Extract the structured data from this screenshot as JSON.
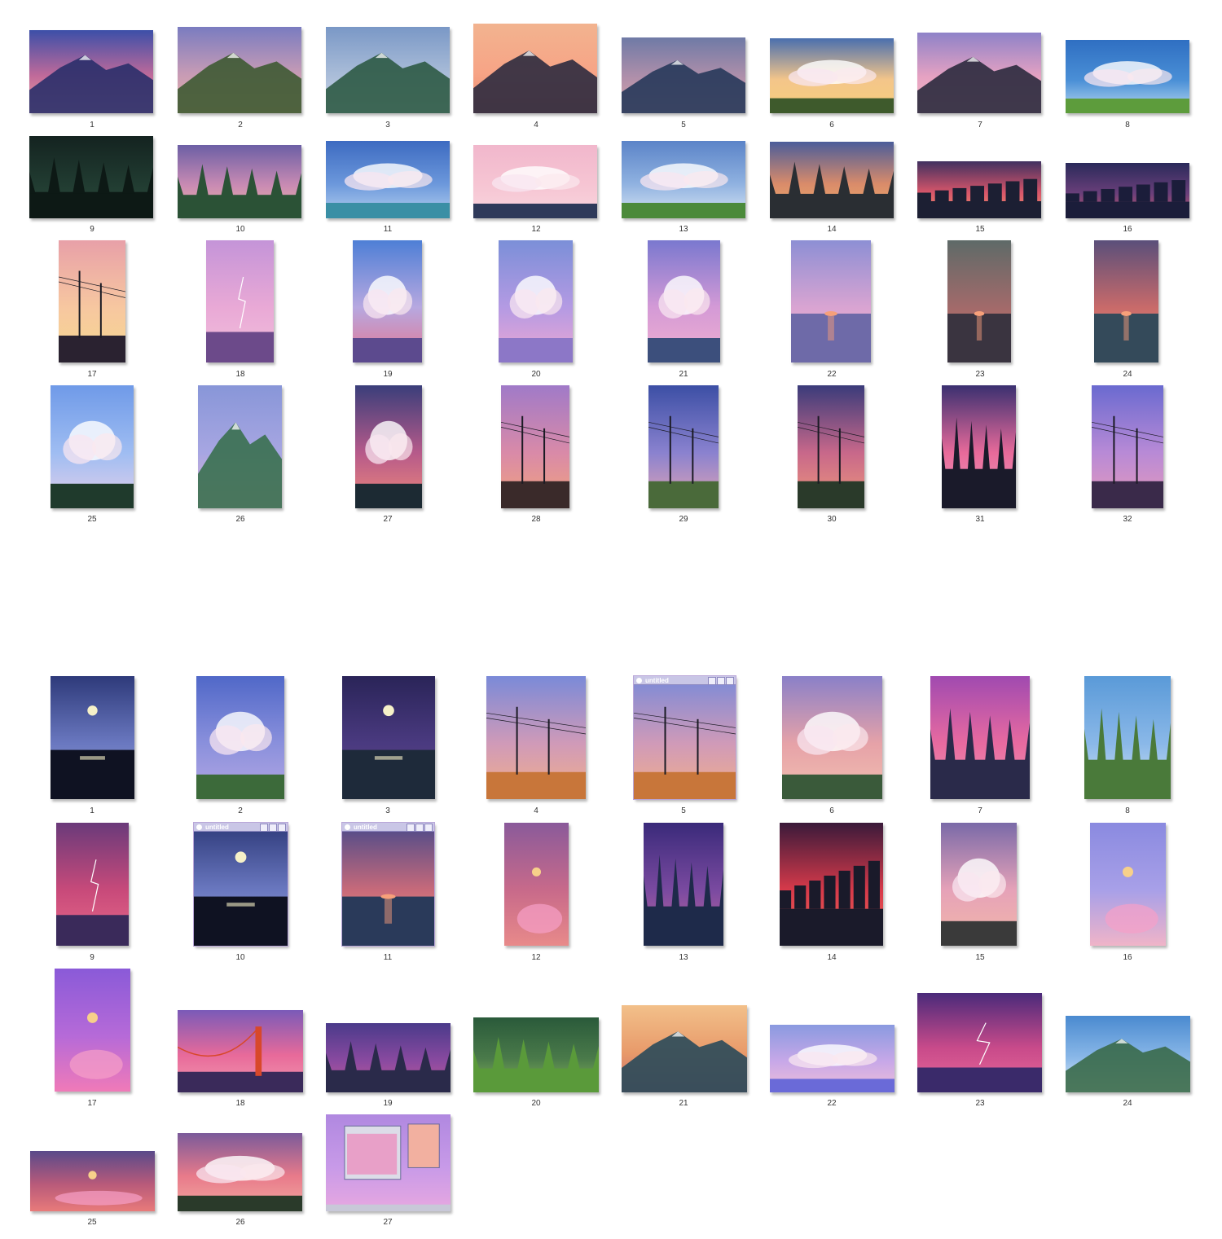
{
  "gallery_top": {
    "items": [
      {
        "label": "1",
        "sky": [
          "#3c4fa8",
          "#c06a9a",
          "#f0a6a0"
        ],
        "ground": "#2a2f6a",
        "motif": "mountain"
      },
      {
        "label": "2",
        "sky": [
          "#7a7cc0",
          "#c79bb5",
          "#e8b3a5"
        ],
        "ground": "#3e5a33",
        "motif": "mountain"
      },
      {
        "label": "3",
        "sky": [
          "#7a98c6",
          "#a9bcd8",
          "#cdd6e6"
        ],
        "ground": "#2e5a45",
        "motif": "mountain"
      },
      {
        "label": "4",
        "sky": [
          "#f2b38f",
          "#f7a486",
          "#e9896e"
        ],
        "ground": "#2d2b3f",
        "motif": "mountain"
      },
      {
        "label": "5",
        "sky": [
          "#6f7aa6",
          "#b290aa",
          "#d8a9a8"
        ],
        "ground": "#27385a",
        "motif": "mountain"
      },
      {
        "label": "6",
        "sky": [
          "#4a6fae",
          "#f3c58a",
          "#f7d07c"
        ],
        "ground": "#3e5a2c",
        "motif": "clouds"
      },
      {
        "label": "7",
        "sky": [
          "#8e82c8",
          "#e6a2c2",
          "#f3b8c0"
        ],
        "ground": "#2b2a3e",
        "motif": "mountain"
      },
      {
        "label": "8",
        "sky": [
          "#2f6fc2",
          "#4a8fd6",
          "#bcdcf2"
        ],
        "ground": "#5d9c3c",
        "motif": "clouds"
      },
      {
        "label": "9",
        "sky": [
          "#142320",
          "#203a30",
          "#2c4d3d"
        ],
        "ground": "#0d1915",
        "motif": "forest"
      },
      {
        "label": "10",
        "sky": [
          "#6c5fa5",
          "#c98bb3",
          "#f2b7a6"
        ],
        "ground": "#2b5236",
        "motif": "forest"
      },
      {
        "label": "11",
        "sky": [
          "#3d6bc1",
          "#6b97db",
          "#b6d2f0"
        ],
        "ground": "#3a8fa5",
        "motif": "clouds"
      },
      {
        "label": "12",
        "sky": [
          "#f1b7cc",
          "#f6c5d3",
          "#f9d6de"
        ],
        "ground": "#2f3a5a",
        "motif": "clouds"
      },
      {
        "label": "13",
        "sky": [
          "#5b84c8",
          "#8fb1e0",
          "#d8e6f4"
        ],
        "ground": "#4b8a3a",
        "motif": "clouds"
      },
      {
        "label": "14",
        "sky": [
          "#4b5d9a",
          "#d98b6a",
          "#f2b26a"
        ],
        "ground": "#2a2e33",
        "motif": "forest"
      },
      {
        "label": "15",
        "sky": [
          "#40305f",
          "#d8566a",
          "#f29a6a"
        ],
        "ground": "#1c1f33",
        "motif": "city"
      },
      {
        "label": "16",
        "sky": [
          "#2a2a5a",
          "#6a3f7a",
          "#c85a6a"
        ],
        "ground": "#1b1d3a",
        "motif": "city"
      },
      {
        "label": "17",
        "sky": [
          "#e8a0a8",
          "#f7c7a0",
          "#f6d98f"
        ],
        "ground": "#2a2230",
        "motif": "poles"
      },
      {
        "label": "18",
        "sky": [
          "#c494d8",
          "#e9a9d6",
          "#f2c0dc"
        ],
        "ground": "#6c4a8a",
        "motif": "storm"
      },
      {
        "label": "19",
        "sky": [
          "#4e7fd6",
          "#b7a8e0",
          "#e5748f"
        ],
        "ground": "#5c4a8e",
        "motif": "clouds"
      },
      {
        "label": "20",
        "sky": [
          "#7b8fd8",
          "#b49ae3",
          "#f0a8d3"
        ],
        "ground": "#8c77c7",
        "motif": "clouds"
      },
      {
        "label": "21",
        "sky": [
          "#7a78cf",
          "#d49ad6",
          "#f1b0d0"
        ],
        "ground": "#3c4f7c",
        "motif": "clouds"
      },
      {
        "label": "22",
        "sky": [
          "#8d8fd4",
          "#d9a4d2",
          "#f3b8c2"
        ],
        "ground": "#6e6aa8",
        "motif": "sea"
      },
      {
        "label": "23",
        "sky": [
          "#5e6a68",
          "#a26a6a",
          "#d9766a"
        ],
        "ground": "#3a3440",
        "motif": "sea"
      },
      {
        "label": "24",
        "sky": [
          "#5a4f7a",
          "#c86a6a",
          "#f29a7a"
        ],
        "ground": "#344a5a",
        "motif": "sea"
      },
      {
        "label": "25",
        "sky": [
          "#6f9ae8",
          "#9fbdf2",
          "#e6d0ea"
        ],
        "ground": "#1f3a2c",
        "motif": "clouds"
      },
      {
        "label": "26",
        "sky": [
          "#8896d8",
          "#a7a6e2",
          "#e0b2d2"
        ],
        "ground": "#3a7050",
        "motif": "mountain"
      },
      {
        "label": "27",
        "sky": [
          "#3a3e7a",
          "#b65a8a",
          "#f08a7a"
        ],
        "ground": "#1c2a33",
        "motif": "clouds"
      },
      {
        "label": "28",
        "sky": [
          "#a07ac8",
          "#d98aa8",
          "#f2a47a"
        ],
        "ground": "#3a2a2a",
        "motif": "poles"
      },
      {
        "label": "29",
        "sky": [
          "#3c4fa5",
          "#8a82cf",
          "#e9a6b2"
        ],
        "ground": "#4a6a3a",
        "motif": "poles"
      },
      {
        "label": "30",
        "sky": [
          "#3a3b7a",
          "#c8688a",
          "#f09a7a"
        ],
        "ground": "#2a3a2a",
        "motif": "poles"
      },
      {
        "label": "31",
        "sky": [
          "#3a3070",
          "#e86a9a",
          "#f3a2c2"
        ],
        "ground": "#1a1a2a",
        "motif": "forest"
      },
      {
        "label": "32",
        "sky": [
          "#6a6ad0",
          "#b88ad6",
          "#e89aba"
        ],
        "ground": "#3a2a4a",
        "motif": "poles"
      }
    ]
  },
  "gallery_bottom": {
    "items": [
      {
        "label": "1",
        "sky": [
          "#2e3a7a",
          "#6a78c0",
          "#9aa6d8"
        ],
        "ground": "#0f1222",
        "motif": "night"
      },
      {
        "label": "2",
        "sky": [
          "#5068c8",
          "#8a90dc",
          "#b6a8e4"
        ],
        "ground": "#3c6a3a",
        "motif": "clouds"
      },
      {
        "label": "3",
        "sky": [
          "#2a2458",
          "#4a3a80",
          "#6a4a8a"
        ],
        "ground": "#1e2a3a",
        "motif": "night"
      },
      {
        "label": "4",
        "sky": [
          "#7a8ad8",
          "#d09ab8",
          "#f3b088"
        ],
        "ground": "#c8763a",
        "motif": "poles"
      },
      {
        "label": "5",
        "sky": [
          "#7a8ad8",
          "#d09ab8",
          "#f3b088"
        ],
        "ground": "#c8763a",
        "motif": "poles",
        "window_title": "untitled"
      },
      {
        "label": "6",
        "sky": [
          "#8a80c8",
          "#e6a2a8",
          "#f2c0b0"
        ],
        "ground": "#3a5a3a",
        "motif": "clouds"
      },
      {
        "label": "7",
        "sky": [
          "#a04ab0",
          "#e86aa0",
          "#f29ab0"
        ],
        "ground": "#2a2a4a",
        "motif": "forest"
      },
      {
        "label": "8",
        "sky": [
          "#5a9ad8",
          "#8ab8e8",
          "#d8e8f4"
        ],
        "ground": "#4a7a3a",
        "motif": "forest"
      },
      {
        "label": "9",
        "sky": [
          "#6a3a7a",
          "#c84a7a",
          "#e86a8a"
        ],
        "ground": "#3a2a5a",
        "motif": "storm"
      },
      {
        "label": "10",
        "sky": [
          "#2e3a7a",
          "#6a78c0",
          "#9aa6d8"
        ],
        "ground": "#0f1222",
        "motif": "night",
        "window_title": "untitled"
      },
      {
        "label": "11",
        "sky": [
          "#4a4a8a",
          "#c86a7a",
          "#f29a7a"
        ],
        "ground": "#2a3a5a",
        "motif": "sea",
        "window_title": "untitled"
      },
      {
        "label": "12",
        "sky": [
          "#8a5a9a",
          "#c86a8a",
          "#e88a8a"
        ],
        "ground": "#1e1e3a",
        "motif": "moon"
      },
      {
        "label": "13",
        "sky": [
          "#3a2a7a",
          "#7a4aa0",
          "#c86aa0"
        ],
        "ground": "#1e2a4a",
        "motif": "forest"
      },
      {
        "label": "14",
        "sky": [
          "#3a1a3a",
          "#d83a4a",
          "#f26a5a"
        ],
        "ground": "#1a1a2a",
        "motif": "city"
      },
      {
        "label": "15",
        "sky": [
          "#7a6aa8",
          "#e6a2b8",
          "#f2b8a8"
        ],
        "ground": "#3a3a3a",
        "motif": "clouds"
      },
      {
        "label": "16",
        "sky": [
          "#8a8ae0",
          "#a8a0e8",
          "#f0b4c8"
        ],
        "ground": "#8a8ad8",
        "motif": "moon"
      },
      {
        "label": "17",
        "sky": [
          "#8a5ad8",
          "#b66ad8",
          "#f07ab8"
        ],
        "ground": "#8a5ad8",
        "motif": "moon"
      },
      {
        "label": "18",
        "sky": [
          "#7a5ab8",
          "#e86a9a",
          "#f29ab0"
        ],
        "ground": "#3a2a5a",
        "motif": "bridge"
      },
      {
        "label": "19",
        "sky": [
          "#4a3a8a",
          "#8a4aa0",
          "#c85a9a"
        ],
        "ground": "#2a2a4a",
        "motif": "forest"
      },
      {
        "label": "20",
        "sky": [
          "#2a5a3a",
          "#4a7a4a",
          "#8ab85a"
        ],
        "ground": "#5a9a3a",
        "motif": "forest"
      },
      {
        "label": "21",
        "sky": [
          "#f2c08a",
          "#e89a6a",
          "#c86a6a"
        ],
        "ground": "#2a4a5a",
        "motif": "mountain"
      },
      {
        "label": "22",
        "sky": [
          "#8a9ae0",
          "#c8a8e8",
          "#f0c0d8"
        ],
        "ground": "#6a6ad8",
        "motif": "clouds"
      },
      {
        "label": "23",
        "sky": [
          "#4a2a7a",
          "#c84a8a",
          "#e86a9a"
        ],
        "ground": "#3a2a6a",
        "motif": "storm"
      },
      {
        "label": "24",
        "sky": [
          "#4a8ad0",
          "#8ab8e8",
          "#e8f0f8"
        ],
        "ground": "#3a6a4a",
        "motif": "mountain"
      },
      {
        "label": "25",
        "sky": [
          "#5a4a8a",
          "#b85a7a",
          "#e87a7a"
        ],
        "ground": "#2a2a4a",
        "motif": "moon"
      },
      {
        "label": "26",
        "sky": [
          "#7a5a9a",
          "#e87a8a",
          "#f2a8a0"
        ],
        "ground": "#2a3a2a",
        "motif": "clouds"
      },
      {
        "label": "27",
        "sky": [
          "#b088e0",
          "#c89ae8",
          "#e8a8e0"
        ],
        "ground": "#b088e0",
        "motif": "desktop"
      }
    ]
  }
}
